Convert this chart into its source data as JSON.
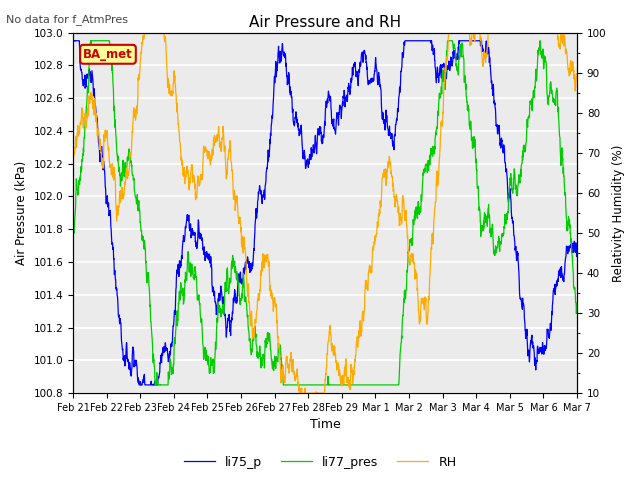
{
  "title": "Air Pressure and RH",
  "subtitle": "No data for f_AtmPres",
  "xlabel": "Time",
  "ylabel_left": "Air Pressure (kPa)",
  "ylabel_right": "Relativity Humidity (%)",
  "ylim_left": [
    100.8,
    103.0
  ],
  "ylim_right": [
    10,
    100
  ],
  "yticks_left": [
    100.8,
    101.0,
    101.2,
    101.4,
    101.6,
    101.8,
    102.0,
    102.2,
    102.4,
    102.6,
    102.8,
    103.0
  ],
  "yticks_right": [
    10,
    20,
    30,
    40,
    50,
    60,
    70,
    80,
    90,
    100
  ],
  "color_li75": "#0000ff",
  "color_li77": "#00cc00",
  "color_rh": "#ffaa00",
  "legend_label": "BA_met",
  "legend_labels": [
    "li75_p",
    "li77_pres",
    "RH"
  ],
  "n_points": 2000,
  "background_color": "#ebebeb",
  "grid_color": "#ffffff",
  "fig_bg": "#ffffff",
  "figsize": [
    6.4,
    4.8
  ],
  "dpi": 100
}
